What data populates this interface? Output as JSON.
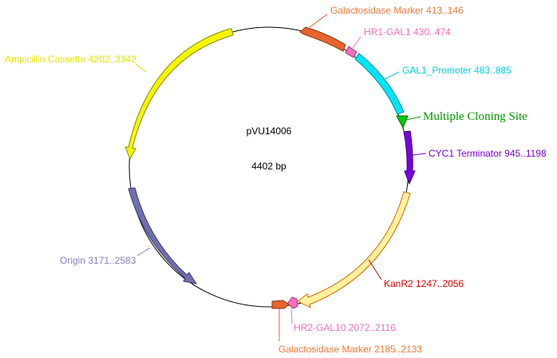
{
  "plasmid": {
    "name": "pVU14006",
    "size_label": "4402 bp",
    "total_bp": 4402
  },
  "features": [
    {
      "id": "galactosidase-marker-1",
      "label": "Galactosidase Marker 413..146",
      "color": "#e8642c",
      "label_color": "#f07b3a"
    },
    {
      "id": "hr1-gal1",
      "label": "HR1-GAL1 430..474",
      "color": "#f070c0",
      "label_color": "#f070c0"
    },
    {
      "id": "gal1-promoter",
      "label": "GAL1_Promoter 483..885",
      "color": "#00e5f5",
      "label_color": "#00d0e8"
    },
    {
      "id": "multiple-cloning-site",
      "label": "Multiple Cloning Site",
      "color": "#00cc00",
      "label_color": "#009900"
    },
    {
      "id": "cyc1-terminator",
      "label": "CYC1 Terminator 945..1198",
      "color": "#7a00e0",
      "label_color": "#7a00e0"
    },
    {
      "id": "kanr2",
      "label": "KanR2 1247..2056",
      "color": "#fff0a0",
      "label_color": "#e00000"
    },
    {
      "id": "hr2-gal10",
      "label": "HR2-GAL10 2072..2116",
      "color": "#f070c0",
      "label_color": "#f070c0"
    },
    {
      "id": "galactosidase-marker-2",
      "label": "Galactosidase Marker 2185..2133",
      "color": "#e8642c",
      "label_color": "#f07b3a"
    },
    {
      "id": "origin",
      "label": "Origin 3171..2583",
      "color": "#7070b0",
      "label_color": "#8080c0"
    },
    {
      "id": "ampicillin-cassette",
      "label": "Ampicillin Cassette 4202..3342",
      "color": "#f5f500",
      "label_color": "#e6e600"
    }
  ]
}
